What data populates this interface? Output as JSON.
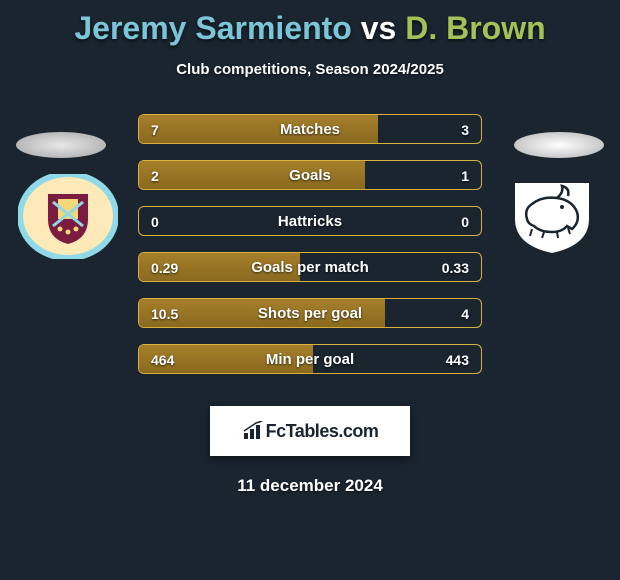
{
  "background_color": "#1a2530",
  "title": {
    "player1": "Jeremy Sarmiento",
    "vs": "vs",
    "player2": "D. Brown",
    "color1": "#7cc5d8",
    "color2": "#a3c158"
  },
  "subtitle": "Club competitions, Season 2024/2025",
  "pedestal_color_left": "#e8e8e8",
  "pedestal_color_right": "#ffffff",
  "logo_left": {
    "bg": "#fee9b9",
    "ring": "#8fd9e8"
  },
  "logo_right": {
    "bg": "#ffffff"
  },
  "chart": {
    "type": "comparison-bars",
    "border_color": "#d9b13a",
    "fill_color": "#a57f2a",
    "empty_color": "transparent",
    "rows": [
      {
        "label": "Matches",
        "left": "7",
        "right": "3",
        "fill_pct": 70
      },
      {
        "label": "Goals",
        "left": "2",
        "right": "1",
        "fill_pct": 66
      },
      {
        "label": "Hattricks",
        "left": "0",
        "right": "0",
        "fill_pct": 0
      },
      {
        "label": "Goals per match",
        "left": "0.29",
        "right": "0.33",
        "fill_pct": 47
      },
      {
        "label": "Shots per goal",
        "left": "10.5",
        "right": "4",
        "fill_pct": 72
      },
      {
        "label": "Min per goal",
        "left": "464",
        "right": "443",
        "fill_pct": 51
      }
    ]
  },
  "brand": "FcTables.com",
  "date": "11 december 2024"
}
